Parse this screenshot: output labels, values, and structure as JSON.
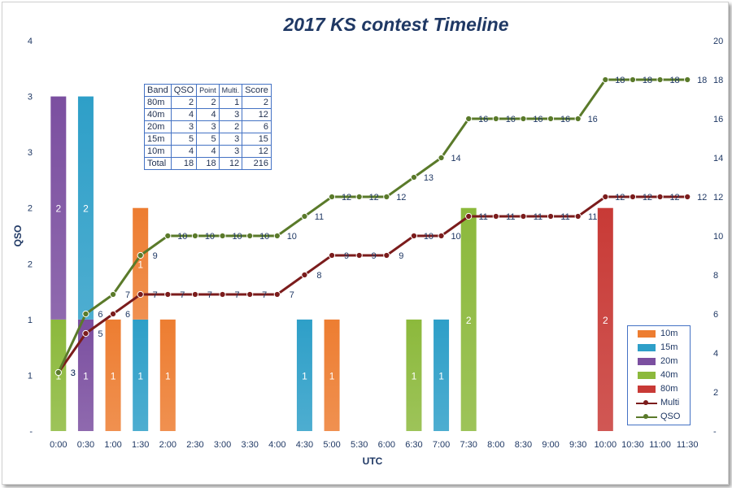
{
  "chart_data": {
    "type": "bar",
    "title": "2017 KS contest Timeline",
    "xlabel": "UTC",
    "ylabel": "QSO",
    "categories": [
      "0:00",
      "0:30",
      "1:00",
      "1:30",
      "2:00",
      "2:30",
      "3:00",
      "3:30",
      "4:00",
      "4:30",
      "5:00",
      "5:30",
      "6:00",
      "6:30",
      "7:00",
      "7:30",
      "8:00",
      "8:30",
      "9:00",
      "9:30",
      "10:00",
      "10:30",
      "11:00",
      "11:30"
    ],
    "left_axis": {
      "range": [
        0,
        3.5
      ],
      "tick_labels": [
        "-",
        "1",
        "1",
        "2",
        "2",
        "3",
        "3",
        "4"
      ]
    },
    "right_axis": {
      "range": [
        0,
        20
      ],
      "tick_labels": [
        "-",
        "2",
        "4",
        "6",
        "8",
        "10",
        "12",
        "14",
        "16",
        "18",
        "20"
      ]
    },
    "series": [
      {
        "name": "10m",
        "kind": "bar",
        "color": "#ed7d31",
        "values": [
          0,
          0,
          1,
          1,
          1,
          0,
          0,
          0,
          0,
          0,
          1,
          0,
          0,
          0,
          0,
          0,
          0,
          0,
          0,
          0,
          0,
          0,
          0,
          0
        ]
      },
      {
        "name": "15m",
        "kind": "bar",
        "color": "#2e9fc8",
        "values": [
          0,
          2,
          0,
          1,
          0,
          0,
          0,
          0,
          0,
          1,
          0,
          0,
          0,
          0,
          1,
          0,
          0,
          0,
          0,
          0,
          0,
          0,
          0,
          0
        ]
      },
      {
        "name": "20m",
        "kind": "bar",
        "color": "#7b4fa0",
        "values": [
          2,
          1,
          0,
          0,
          0,
          0,
          0,
          0,
          0,
          0,
          0,
          0,
          0,
          0,
          0,
          0,
          0,
          0,
          0,
          0,
          0,
          0,
          0,
          0
        ]
      },
      {
        "name": "40m",
        "kind": "bar",
        "color": "#8cb93c",
        "values": [
          1,
          0,
          0,
          0,
          0,
          0,
          0,
          0,
          0,
          0,
          0,
          0,
          0,
          1,
          0,
          2,
          0,
          0,
          0,
          0,
          0,
          0,
          0,
          0
        ]
      },
      {
        "name": "80m",
        "kind": "bar",
        "color": "#c83a36",
        "values": [
          0,
          0,
          0,
          0,
          0,
          0,
          0,
          0,
          0,
          0,
          0,
          0,
          0,
          0,
          0,
          0,
          0,
          0,
          0,
          0,
          2,
          0,
          0,
          0
        ]
      },
      {
        "name": "Multi",
        "kind": "line",
        "axis": "right",
        "color": "#7b1c1c",
        "values": [
          3,
          5,
          6,
          7,
          7,
          7,
          7,
          7,
          7,
          8,
          9,
          9,
          9,
          10,
          10,
          11,
          11,
          11,
          11,
          11,
          12,
          12,
          12,
          12
        ]
      },
      {
        "name": "QSO",
        "kind": "line",
        "axis": "right",
        "color": "#5a7a2a",
        "values": [
          3,
          6,
          7,
          9,
          10,
          10,
          10,
          10,
          10,
          11,
          12,
          12,
          12,
          13,
          14,
          16,
          16,
          16,
          16,
          16,
          18,
          18,
          18,
          18
        ]
      }
    ],
    "legend_position": "bottom-right",
    "grid": false
  },
  "table": {
    "headers": [
      "Band",
      "QSO",
      "Point",
      "Multi.",
      "Score"
    ],
    "rows": [
      [
        "80m",
        "2",
        "2",
        "1",
        "2"
      ],
      [
        "40m",
        "4",
        "4",
        "3",
        "12"
      ],
      [
        "20m",
        "3",
        "3",
        "2",
        "6"
      ],
      [
        "15m",
        "5",
        "5",
        "3",
        "15"
      ],
      [
        "10m",
        "4",
        "4",
        "3",
        "12"
      ],
      [
        "Total",
        "18",
        "18",
        "12",
        "216"
      ]
    ]
  }
}
